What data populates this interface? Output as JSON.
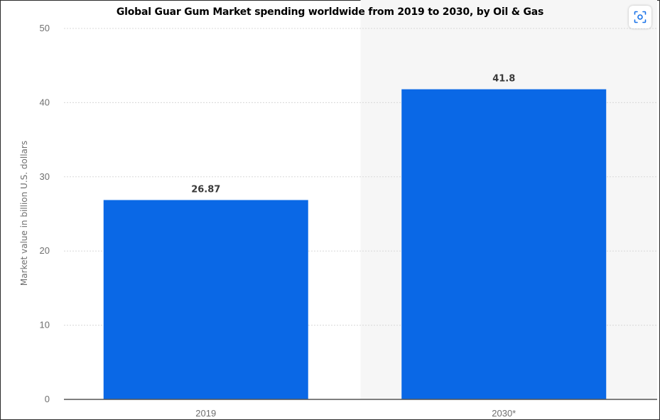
{
  "chart_data": {
    "type": "bar",
    "title": "Global Guar Gum Market spending worldwide from 2019 to 2030, by Oil & Gas",
    "ylabel": "Market value in billion U.S. dollars",
    "xlabel": "",
    "categories": [
      "2019",
      "2030*"
    ],
    "values": [
      26.87,
      41.8
    ],
    "value_labels": [
      "26.87",
      "41.8"
    ],
    "ylim": [
      0,
      50
    ],
    "yticks": [
      0,
      10,
      20,
      30,
      40,
      50
    ],
    "grid": true,
    "forecast_region_start_category": "2030*",
    "colors": {
      "bar": "#0a68e6",
      "forecast_bg": "#f6f6f6",
      "grid": "#d8d8d8",
      "axis": "#555555"
    }
  },
  "toolbar": {
    "scan_icon": "scan-icon"
  }
}
